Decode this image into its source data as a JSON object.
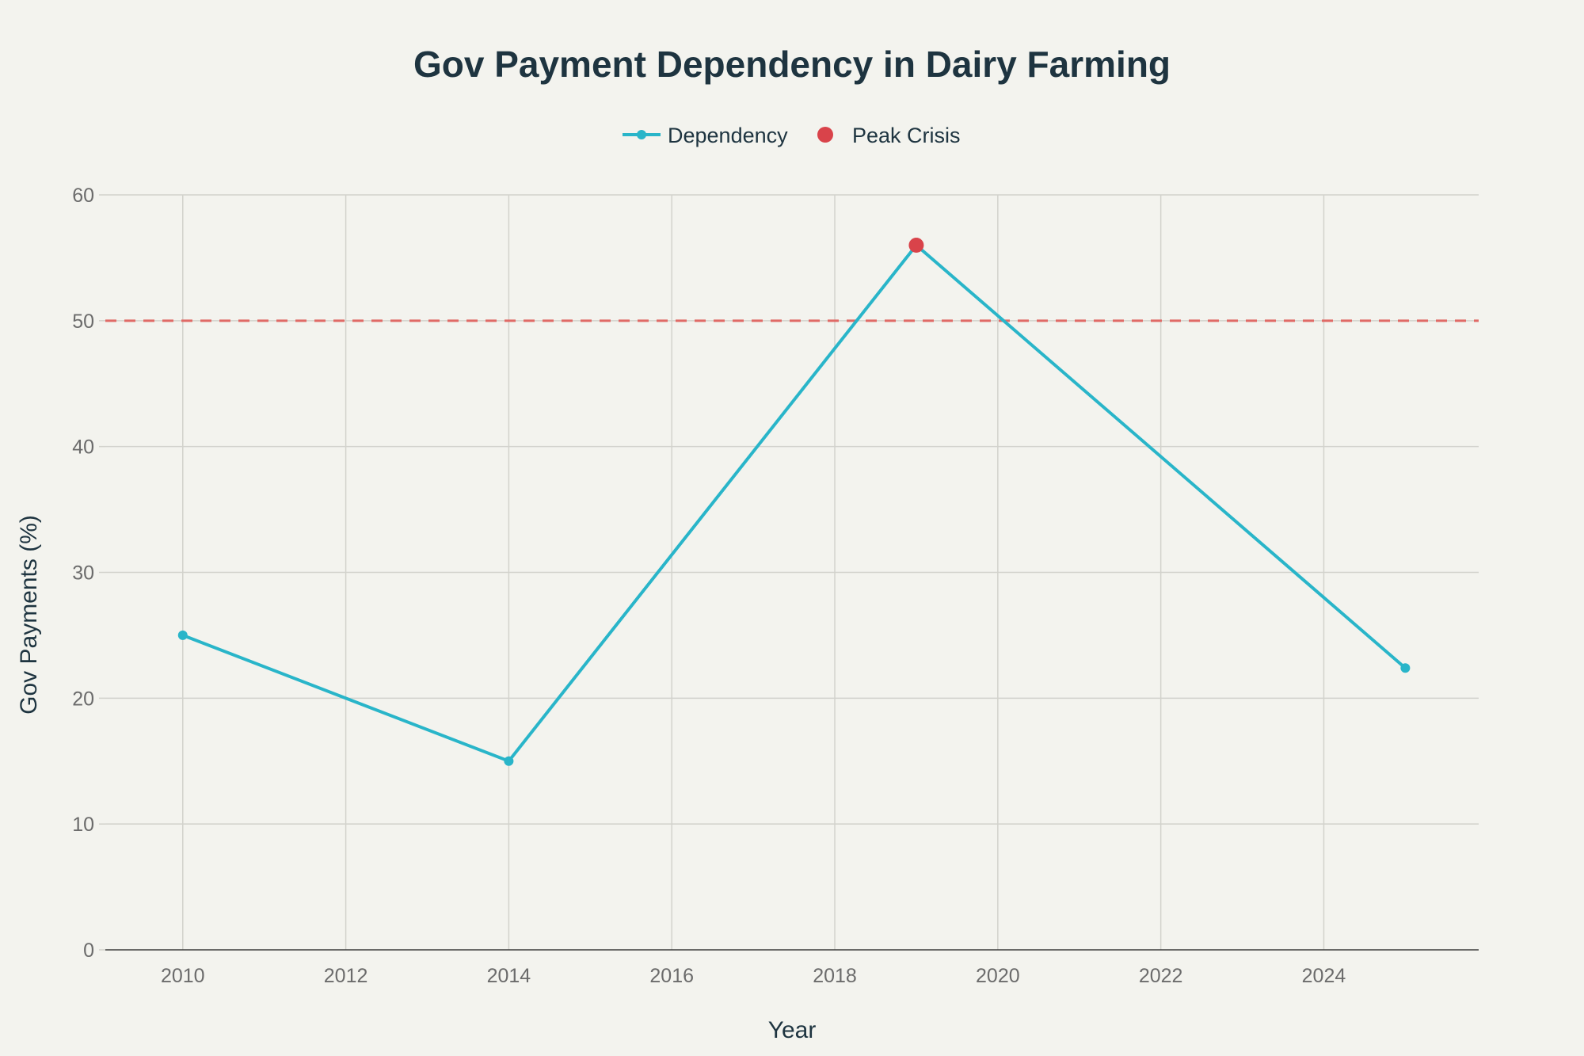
{
  "chart_data": {
    "type": "line",
    "title": "Gov Payment Dependency in Dairy Farming",
    "xlabel": "Year",
    "ylabel": "Gov Payments (%)",
    "xlim": [
      2009.05,
      2025.9
    ],
    "ylim": [
      0,
      60
    ],
    "x_ticks": [
      2010,
      2012,
      2014,
      2016,
      2018,
      2020,
      2022,
      2024
    ],
    "y_ticks": [
      0,
      10,
      20,
      30,
      40,
      50,
      60
    ],
    "grid": true,
    "legend_position": "top-center",
    "series": [
      {
        "name": "Dependency",
        "color": "#29b5c9",
        "points": [
          {
            "x": 2010,
            "y": 25.0
          },
          {
            "x": 2014,
            "y": 15.0
          },
          {
            "x": 2019,
            "y": 56.0
          },
          {
            "x": 2025,
            "y": 22.4
          }
        ]
      },
      {
        "name": "Peak Crisis",
        "color": "#d9434a",
        "mode": "markers",
        "points": [
          {
            "x": 2019,
            "y": 56.0
          }
        ]
      }
    ],
    "reference_lines": [
      {
        "axis": "y",
        "value": 50,
        "color": "#e06a66",
        "style": "dashed"
      }
    ]
  }
}
